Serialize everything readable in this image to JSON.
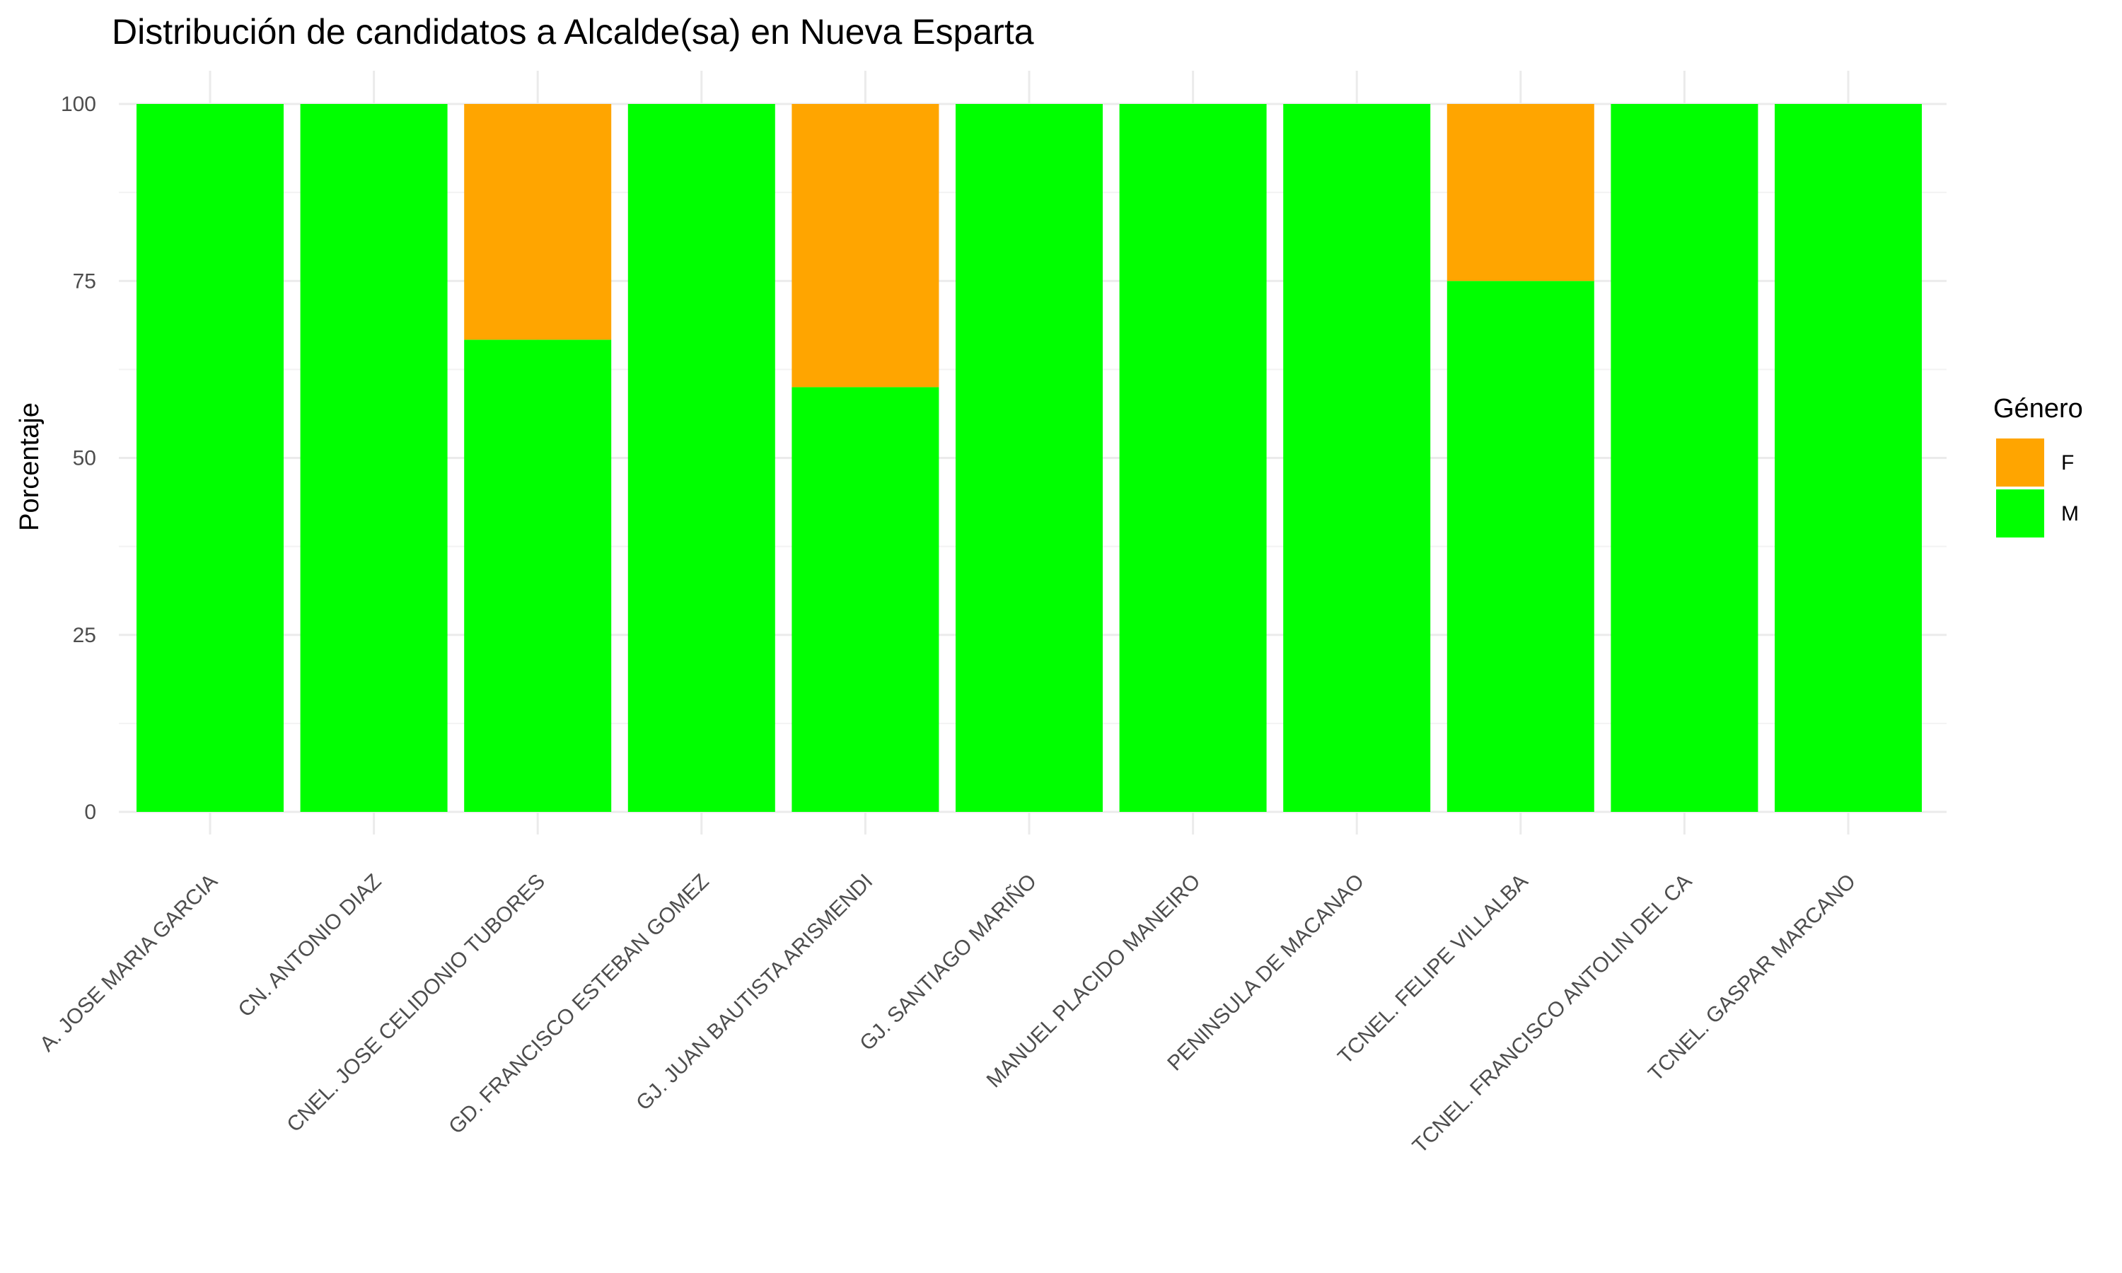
{
  "chart_data": {
    "type": "bar",
    "stacked": true,
    "title": "Distribución de candidatos a Alcalde(sa) en Nueva Esparta",
    "xlabel": "",
    "ylabel": "Porcentaje",
    "ylim": [
      0,
      100
    ],
    "yticks": [
      "0",
      "25",
      "50",
      "75",
      "100"
    ],
    "categories": [
      "A. JOSE MARIA GARCIA",
      "CN. ANTONIO DIAZ",
      "CNEL. JOSE CELIDONIO TUBORES",
      "GD. FRANCISCO ESTEBAN GOMEZ",
      "GJ. JUAN BAUTISTA ARISMENDI",
      "GJ. SANTIAGO MARIÑO",
      "MANUEL PLACIDO MANEIRO",
      "PENINSULA DE MACANAO",
      "TCNEL. FELIPE VILLALBA",
      "TCNEL. FRANCISCO ANTOLIN DEL CA",
      "TCNEL. GASPAR MARCANO"
    ],
    "series": [
      {
        "name": "M",
        "color": "#00ff00",
        "values": [
          100,
          100,
          66.7,
          100,
          60,
          100,
          100,
          100,
          75,
          100,
          100
        ]
      },
      {
        "name": "F",
        "color": "#ffa500",
        "values": [
          0,
          0,
          33.3,
          0,
          40,
          0,
          0,
          0,
          25,
          0,
          0
        ]
      }
    ],
    "legend": {
      "title": "Género",
      "position": "right",
      "entries": [
        {
          "label": "F",
          "color": "#ffa500"
        },
        {
          "label": "M",
          "color": "#00ff00"
        }
      ]
    },
    "grid": true
  }
}
